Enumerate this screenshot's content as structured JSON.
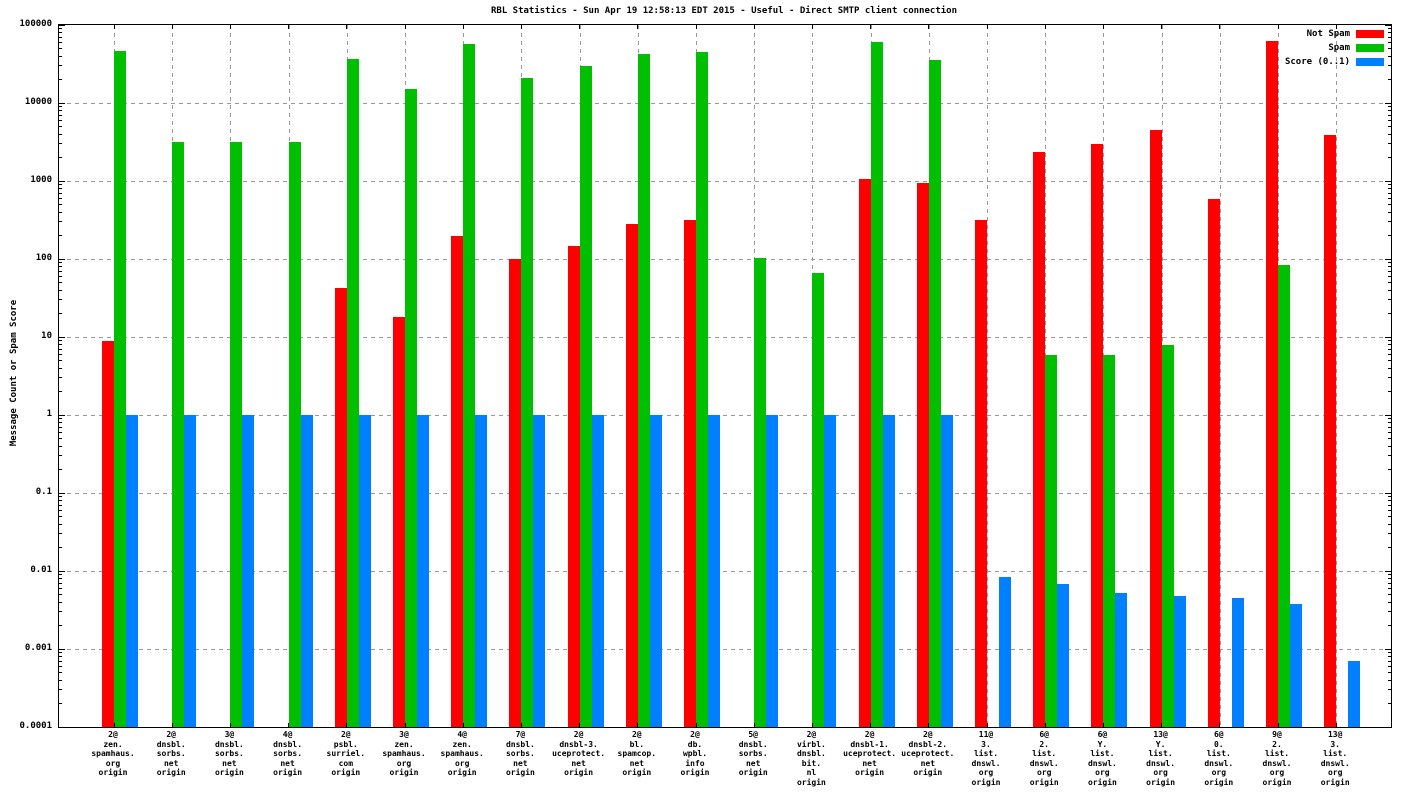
{
  "chart_data": {
    "type": "bar",
    "y_scale": "log",
    "title": "RBL Statistics - Sun Apr 19 12:58:13 EDT 2015 - Useful - Direct SMTP client connection",
    "ylabel": "Message Count or Spam Score",
    "xlabel": "",
    "ylim": [
      0.0001,
      100000
    ],
    "y_tick_labels": [
      "100000",
      "10000",
      "1000",
      "100",
      "10",
      "1",
      "0.1",
      "0.01",
      "0.001",
      "0.0001"
    ],
    "grid": true,
    "legend_position": "top-right-inside",
    "categories": [
      [
        "2@",
        "zen.",
        "spamhaus.",
        "org",
        "origin"
      ],
      [
        "2@",
        "dnsbl.",
        "sorbs.",
        "net",
        "origin"
      ],
      [
        "3@",
        "dnsbl.",
        "sorbs.",
        "net",
        "origin"
      ],
      [
        "4@",
        "dnsbl.",
        "sorbs.",
        "net",
        "origin"
      ],
      [
        "2@",
        "psbl.",
        "surriel.",
        "com",
        "origin"
      ],
      [
        "3@",
        "zen.",
        "spamhaus.",
        "org",
        "origin"
      ],
      [
        "4@",
        "zen.",
        "spamhaus.",
        "org",
        "origin"
      ],
      [
        "7@",
        "dnsbl.",
        "sorbs.",
        "net",
        "origin"
      ],
      [
        "2@",
        "dnsbl-3.",
        "uceprotect.",
        "net",
        "origin"
      ],
      [
        "2@",
        "bl.",
        "spamcop.",
        "net",
        "origin"
      ],
      [
        "2@",
        "db.",
        "wpbl.",
        "info",
        "origin"
      ],
      [
        "5@",
        "dnsbl.",
        "sorbs.",
        "net",
        "origin"
      ],
      [
        "2@",
        "virbl.",
        "dnsbl.",
        "bit.",
        "nl",
        "origin"
      ],
      [
        "2@",
        "dnsbl-1.",
        "uceprotect.",
        "net",
        "origin"
      ],
      [
        "2@",
        "dnsbl-2.",
        "uceprotect.",
        "net",
        "origin"
      ],
      [
        "11@",
        "3.",
        "list.",
        "dnswl.",
        "org",
        "origin"
      ],
      [
        "6@",
        "2.",
        "list.",
        "dnswl.",
        "org",
        "origin"
      ],
      [
        "6@",
        "Y.",
        "list.",
        "dnswl.",
        "org",
        "origin"
      ],
      [
        "13@",
        "Y.",
        "list.",
        "dnswl.",
        "org",
        "origin"
      ],
      [
        "6@",
        "0.",
        "list.",
        "dnswl.",
        "org",
        "origin"
      ],
      [
        "9@",
        "2.",
        "list.",
        "dnswl.",
        "org",
        "origin"
      ],
      [
        "13@",
        "3.",
        "list.",
        "dnswl.",
        "org",
        "origin"
      ]
    ],
    "series": [
      {
        "name": "Not Spam",
        "color": "#ff0000",
        "values": [
          9,
          null,
          null,
          null,
          43,
          18,
          195,
          100,
          145,
          280,
          315,
          null,
          null,
          1050,
          950,
          320,
          2350,
          3000,
          4500,
          590,
          62000,
          3900
        ]
      },
      {
        "name": "Spam",
        "color": "#00bf00",
        "values": [
          46000,
          3200,
          3200,
          3200,
          37000,
          15000,
          57000,
          21000,
          30000,
          43000,
          45000,
          104,
          66,
          61000,
          36000,
          null,
          5.8,
          5.9,
          8,
          null,
          85,
          null
        ]
      },
      {
        "name": "Score (0..1)",
        "color": "#0080ff",
        "values": [
          1,
          1,
          1,
          1,
          1,
          1,
          1,
          1,
          1,
          1,
          1,
          1,
          1,
          1,
          1,
          0.0084,
          0.0069,
          0.0053,
          0.0048,
          0.0045,
          0.0038,
          0.0007
        ]
      }
    ]
  }
}
